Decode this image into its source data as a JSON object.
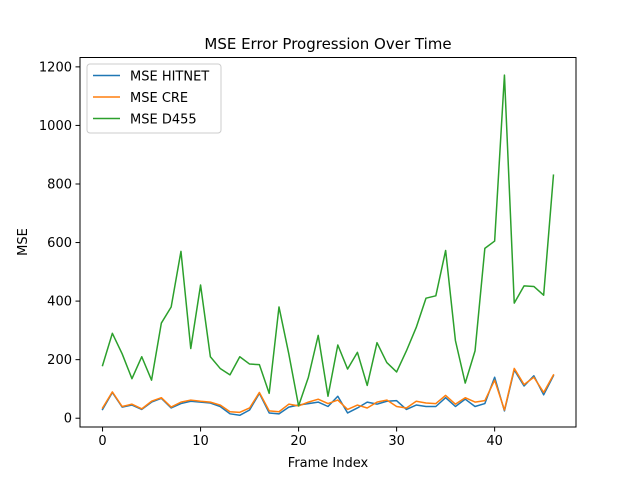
{
  "chart_data": {
    "type": "line",
    "title": "MSE Error Progression Over Time",
    "xlabel": "Frame Index",
    "ylabel": "MSE",
    "xlim": [
      -2.3,
      48.3
    ],
    "ylim": [
      -30,
      1232
    ],
    "xticks": [
      0,
      10,
      20,
      30,
      40
    ],
    "yticks": [
      0,
      200,
      400,
      600,
      800,
      1000,
      1200
    ],
    "grid": false,
    "legend_position": "top-left",
    "x": [
      0,
      1,
      2,
      3,
      4,
      5,
      6,
      7,
      8,
      9,
      10,
      11,
      12,
      13,
      14,
      15,
      16,
      17,
      18,
      19,
      20,
      21,
      22,
      23,
      24,
      25,
      26,
      27,
      28,
      29,
      30,
      31,
      32,
      33,
      34,
      35,
      36,
      37,
      38,
      39,
      40,
      41,
      42,
      43,
      44,
      45,
      46
    ],
    "series": [
      {
        "name": "MSE HITNET",
        "color": "#1f77b4",
        "values": [
          30,
          88,
          38,
          45,
          30,
          55,
          68,
          35,
          50,
          58,
          55,
          52,
          40,
          15,
          10,
          28,
          85,
          18,
          15,
          38,
          45,
          50,
          55,
          40,
          75,
          18,
          35,
          55,
          48,
          58,
          60,
          30,
          45,
          40,
          40,
          70,
          40,
          65,
          40,
          50,
          140,
          25,
          165,
          110,
          145,
          80,
          145
        ]
      },
      {
        "name": "MSE CRE",
        "color": "#ff7f0e",
        "values": [
          35,
          90,
          40,
          48,
          32,
          58,
          70,
          38,
          55,
          62,
          58,
          55,
          45,
          22,
          20,
          35,
          88,
          25,
          22,
          48,
          42,
          55,
          65,
          50,
          62,
          30,
          45,
          35,
          55,
          62,
          40,
          35,
          58,
          52,
          50,
          78,
          48,
          70,
          55,
          60,
          130,
          28,
          170,
          115,
          140,
          88,
          148
        ]
      },
      {
        "name": "MSE D455",
        "color": "#2ca02c",
        "values": [
          180,
          290,
          220,
          135,
          210,
          130,
          325,
          380,
          570,
          238,
          455,
          210,
          170,
          148,
          210,
          185,
          183,
          85,
          380,
          220,
          42,
          140,
          283,
          75,
          250,
          168,
          225,
          112,
          258,
          190,
          158,
          230,
          310,
          410,
          418,
          573,
          265,
          120,
          230,
          580,
          605,
          1172,
          393,
          452,
          450,
          420,
          830
        ]
      }
    ]
  }
}
